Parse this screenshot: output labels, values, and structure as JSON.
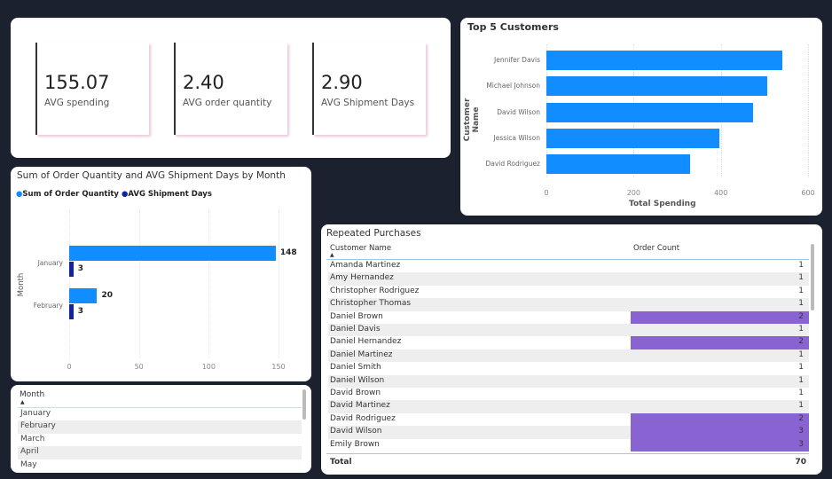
{
  "kpis": [
    {
      "value": "155.07",
      "label": "AVG spending"
    },
    {
      "value": "2.40",
      "label": "AVG order quantity"
    },
    {
      "value": "2.90",
      "label": "AVG Shipment Days"
    }
  ],
  "top5": {
    "title": "Top 5 Customers",
    "chart_data": {
      "type": "bar",
      "orientation": "horizontal",
      "categories": [
        "Jennifer Davis",
        "Michael Johnson",
        "David Wilson",
        "Jessica Wilson",
        "David Rodriguez"
      ],
      "values": [
        541,
        507,
        474,
        397,
        330
      ],
      "xlabel": "Total Spending",
      "ylabel": "Customer Name",
      "xlim": [
        0,
        600
      ],
      "ticks": [
        "0",
        "200",
        "400",
        "600"
      ],
      "color": "#118dff"
    }
  },
  "combo": {
    "title": "Sum of Order Quantity and AVG Shipment Days by Month",
    "chart_data": {
      "type": "bar",
      "orientation": "horizontal",
      "categories": [
        "January",
        "February"
      ],
      "series": [
        {
          "name": "Sum of Order Quantity",
          "values": [
            148,
            20
          ],
          "color": "#118dff"
        },
        {
          "name": "AVG Shipment Days",
          "values": [
            3,
            3
          ],
          "color": "#12239e"
        }
      ],
      "ylabel": "Month",
      "xlim": [
        0,
        160
      ],
      "ticks": [
        "0",
        "50",
        "100",
        "150"
      ],
      "legend": "top-left"
    }
  },
  "slicer": {
    "header": "Month",
    "items": [
      "January",
      "February",
      "March",
      "April",
      "May"
    ]
  },
  "table": {
    "title": "Repeated Purchases",
    "columns": [
      "Customer Name",
      "Order Count"
    ],
    "rows": [
      [
        "Amanda Martinez",
        1
      ],
      [
        "Amy Hernandez",
        1
      ],
      [
        "Christopher Rodriguez",
        1
      ],
      [
        "Christopher Thomas",
        1
      ],
      [
        "Daniel Brown",
        2
      ],
      [
        "Daniel Davis",
        1
      ],
      [
        "Daniel Hernandez",
        2
      ],
      [
        "Daniel Martinez",
        1
      ],
      [
        "Daniel Smith",
        1
      ],
      [
        "Daniel Wilson",
        1
      ],
      [
        "David Brown",
        1
      ],
      [
        "David Martinez",
        1
      ],
      [
        "David Rodriguez",
        2
      ],
      [
        "David Wilson",
        3
      ],
      [
        "Emily Brown",
        3
      ]
    ],
    "total_label": "Total",
    "total": "70",
    "highlight_color": "#8a63d2"
  }
}
